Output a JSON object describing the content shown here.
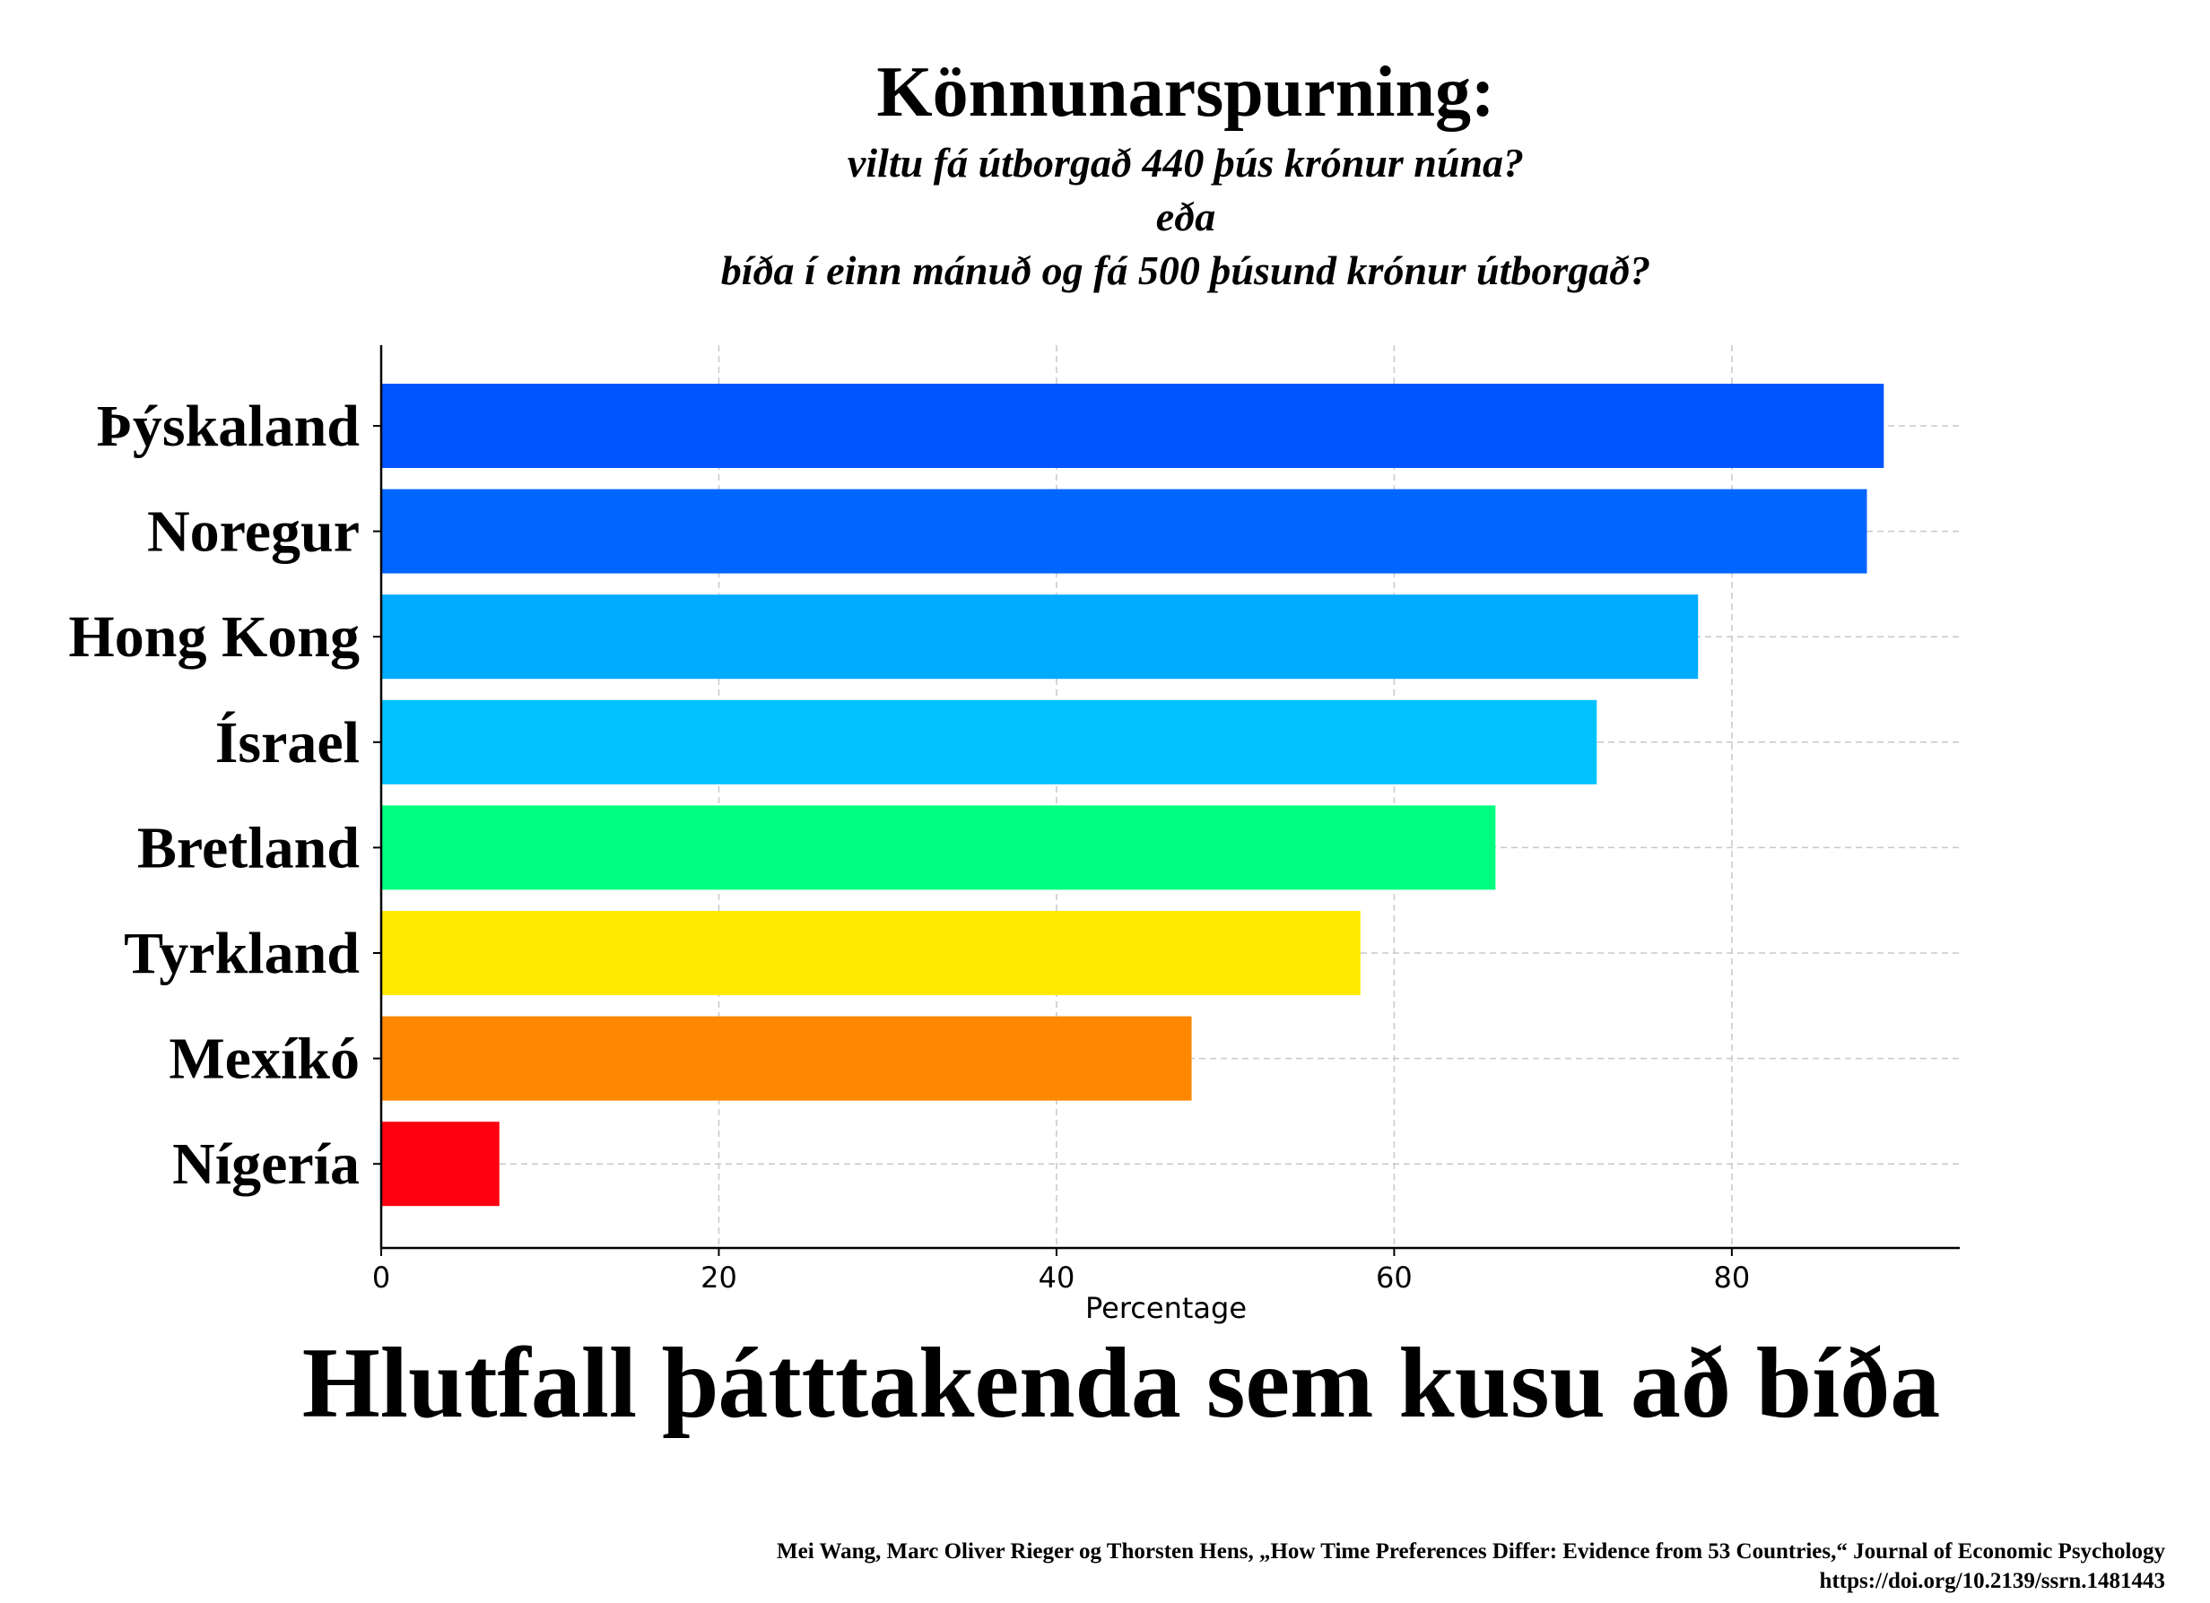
{
  "chart_data": {
    "type": "bar",
    "orientation": "horizontal",
    "title": "Könnunarspurning:",
    "subtitle": [
      "viltu fá útborgað 440 þús krónur núna?",
      "eða",
      "bíða í einn mánuð og fá 500 þúsund krónur útborgað?"
    ],
    "xlabel": "Percentage",
    "caption": "Hlutfall þátttakenda sem kusu að bíða",
    "categories": [
      "Þýskaland",
      "Noregur",
      "Hong Kong",
      "Ísrael",
      "Bretland",
      "Tyrkland",
      "Mexíkó",
      "Nígería"
    ],
    "values": [
      89,
      88,
      78,
      72,
      66,
      58,
      48,
      7
    ],
    "colors": [
      "#0055ff",
      "#0066ff",
      "#00aaff",
      "#00c3ff",
      "#00ff80",
      "#ffea00",
      "#ff8800",
      "#ff0010"
    ],
    "xlim": [
      0,
      93.5
    ],
    "xticks": [
      0,
      20,
      40,
      60,
      80
    ],
    "grid": true
  },
  "source": {
    "line1": "Mei Wang, Marc Oliver Rieger og Thorsten Hens, „How Time Preferences Differ: Evidence from 53 Countries,“ Journal of Economic Psychology",
    "line2": "https://doi.org/10.2139/ssrn.1481443"
  }
}
